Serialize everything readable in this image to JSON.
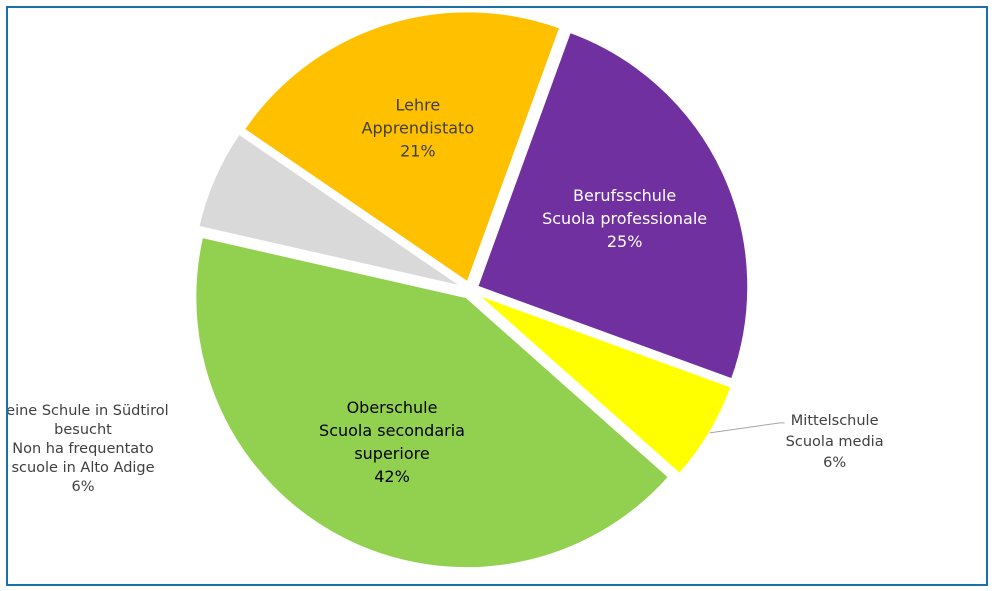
{
  "chart_data": {
    "type": "pie",
    "title": "",
    "slices": [
      {
        "lines": [
          "Berufsschule",
          "Scuola professionale"
        ],
        "pct_label": "25%",
        "value": 25,
        "color": "#7030a0",
        "label_color": "#ffffff",
        "label_placement": "inside",
        "start_deg": 20
      },
      {
        "lines": [
          "Mittelschule",
          "Scuola media"
        ],
        "pct_label": "6%",
        "value": 6,
        "color": "#ffff00",
        "label_color": "#404040",
        "label_placement": "outside-right"
      },
      {
        "lines": [
          "Oberschule",
          "Scuola secondaria",
          "superiore"
        ],
        "pct_label": "42%",
        "value": 42,
        "color": "#92d050",
        "label_color": "#000000",
        "label_placement": "inside"
      },
      {
        "lines": [
          "Keine Schule in Südtirol",
          "besucht",
          "Non ha frequentato",
          "scuole in Alto Adige"
        ],
        "pct_label": "6%",
        "value": 6,
        "color": "#d9d9d9",
        "label_color": "#404040",
        "label_placement": "outside-left"
      },
      {
        "lines": [
          "Lehre",
          "Apprendistato"
        ],
        "pct_label": "21%",
        "value": 21,
        "color": "#ffc000",
        "label_color": "#404040",
        "label_placement": "inside"
      }
    ],
    "legend": "none"
  },
  "colors": {
    "border": "#1d6fa8",
    "leader": "#a6a6a6"
  }
}
